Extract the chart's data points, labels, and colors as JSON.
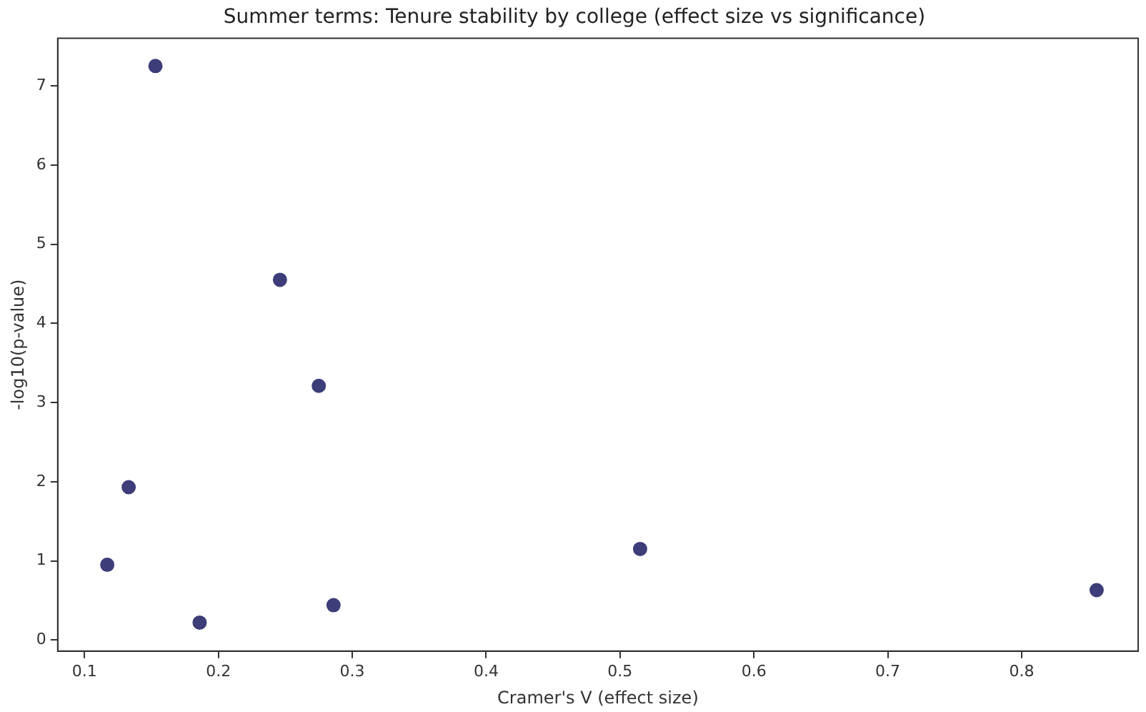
{
  "chart_data": {
    "type": "scatter",
    "title": "Summer terms: Tenure stability by college (effect size vs significance)",
    "xlabel": "Cramer's V (effect size)",
    "ylabel": "-log10(p-value)",
    "series": [
      {
        "color": "#3d3d7a",
        "x": [
          0.153,
          0.246,
          0.275,
          0.133,
          0.117,
          0.186,
          0.286,
          0.515,
          0.856
        ],
        "values": [
          7.25,
          4.55,
          3.21,
          1.93,
          0.95,
          0.22,
          0.44,
          1.15,
          0.63
        ]
      }
    ],
    "xlim": [
      0.08,
      0.887
    ],
    "xticks": [
      0.1,
      0.2,
      0.3,
      0.4,
      0.5,
      0.6,
      0.7,
      0.8
    ],
    "ylim": [
      -0.14,
      7.6
    ],
    "yticks": [
      0,
      1,
      2,
      3,
      4,
      5,
      6,
      7
    ],
    "grid": false,
    "legend": false,
    "marker": "circle"
  }
}
